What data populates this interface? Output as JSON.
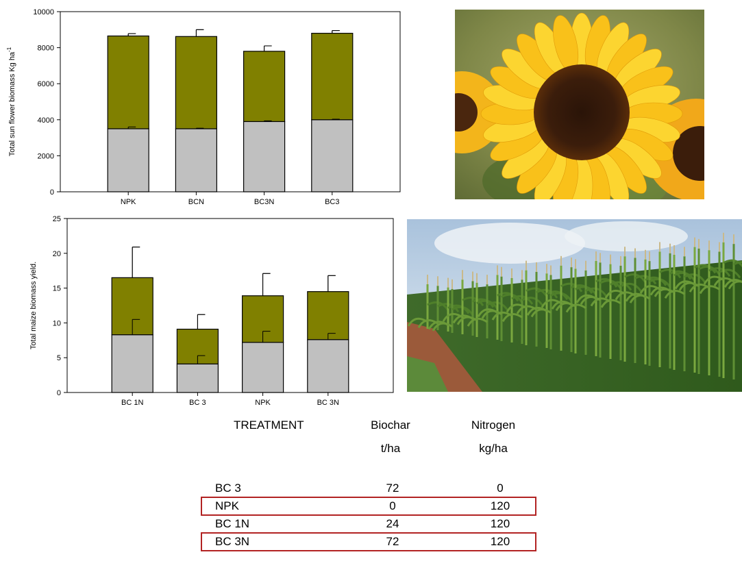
{
  "colors": {
    "upper_bar": "#808000",
    "lower_bar": "#c0c0c0",
    "highlight_border": "#b22222"
  },
  "chart_data": [
    {
      "type": "bar",
      "stacked": true,
      "ylabel": "Total sun flower biomass Kg ha",
      "ylabel_superscript": "-1",
      "ylim": [
        0,
        10000
      ],
      "yticks": [
        0,
        2000,
        4000,
        6000,
        8000,
        10000
      ],
      "categories": [
        "NPK",
        "BCN",
        "BC3N",
        "BC3"
      ],
      "series": [
        {
          "values": [
            3500,
            3500,
            3900,
            4000
          ],
          "errors": [
            100,
            30,
            40,
            30
          ]
        },
        {
          "values": [
            5150,
            5120,
            3900,
            4800
          ],
          "errors": [
            130,
            380,
            300,
            150
          ]
        }
      ],
      "grid": false
    },
    {
      "type": "bar",
      "stacked": true,
      "ylabel": "Total maize biomass yield.",
      "ylim": [
        0,
        25
      ],
      "yticks": [
        0,
        5,
        10,
        15,
        20,
        25
      ],
      "categories": [
        "BC 1N",
        "BC 3",
        "NPK",
        "BC 3N"
      ],
      "series": [
        {
          "values": [
            8.3,
            4.1,
            7.2,
            7.6
          ],
          "errors": [
            2.2,
            1.2,
            1.6,
            0.9
          ]
        },
        {
          "values": [
            8.2,
            5.0,
            6.7,
            6.9
          ],
          "errors": [
            4.4,
            2.1,
            3.2,
            2.3
          ]
        }
      ],
      "grid": false
    }
  ],
  "table": {
    "headers": {
      "treatment": "TREATMENT",
      "biochar": "Biochar",
      "biochar_unit": "t/ha",
      "nitrogen": "Nitrogen",
      "nitrogen_unit": "kg/ha"
    },
    "rows": [
      {
        "treatment": "BC 3",
        "biochar": "72",
        "nitrogen": "0",
        "highlighted": false
      },
      {
        "treatment": "NPK",
        "biochar": "0",
        "nitrogen": "120",
        "highlighted": true
      },
      {
        "treatment": "BC 1N",
        "biochar": "24",
        "nitrogen": "120",
        "highlighted": false
      },
      {
        "treatment": "BC 3N",
        "biochar": "72",
        "nitrogen": "120",
        "highlighted": true
      }
    ]
  }
}
